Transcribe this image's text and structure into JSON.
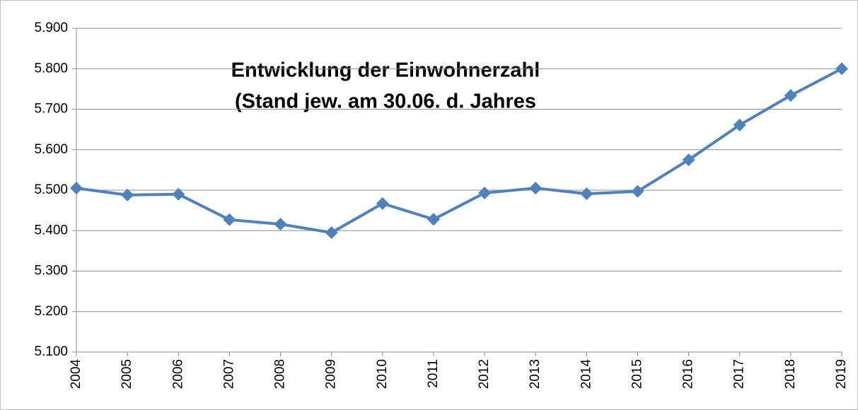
{
  "chart_data": {
    "type": "line",
    "title": [
      "Entwicklung der Einwohnerzahl",
      "(Stand jew. am 30.06. d. Jahres"
    ],
    "categories": [
      "2004",
      "2005",
      "2006",
      "2007",
      "2008",
      "2009",
      "2010",
      "2011",
      "2012",
      "2013",
      "2014",
      "2015",
      "2016",
      "2017",
      "2018",
      "2019"
    ],
    "series": [
      {
        "color": "#4f81bd",
        "values": [
          5505,
          5488,
          5490,
          5427,
          5416,
          5395,
          5467,
          5428,
          5493,
          5505,
          5491,
          5497,
          5575,
          5661,
          5734,
          5800
        ]
      }
    ],
    "ylim": [
      5100,
      5900
    ],
    "yticks": [
      {
        "value": 5100,
        "label": "5.100"
      },
      {
        "value": 5200,
        "label": "5.200"
      },
      {
        "value": 5300,
        "label": "5.300"
      },
      {
        "value": 5400,
        "label": "5.400"
      },
      {
        "value": 5500,
        "label": "5.500"
      },
      {
        "value": 5600,
        "label": "5.600"
      },
      {
        "value": 5700,
        "label": "5.700"
      },
      {
        "value": 5800,
        "label": "5.800"
      },
      {
        "value": 5900,
        "label": "5.900"
      }
    ],
    "grid": true
  }
}
